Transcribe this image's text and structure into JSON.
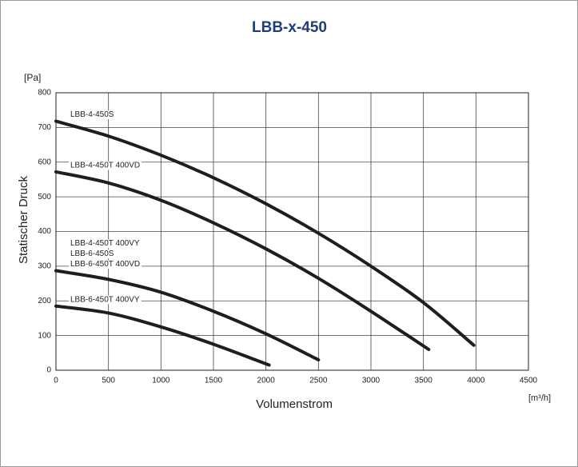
{
  "chart_data": {
    "type": "line",
    "title": "LBB-x-450",
    "y_unit": "[Pa]",
    "x_unit": "[m³/h]",
    "ylabel": "Statischer Druck",
    "xlabel": "Volumenstrom",
    "xlim": [
      0,
      4500
    ],
    "ylim": [
      0,
      800
    ],
    "xticks": [
      0,
      500,
      1000,
      1500,
      2000,
      2500,
      3000,
      3500,
      4000,
      4500
    ],
    "yticks": [
      0,
      100,
      200,
      300,
      400,
      500,
      600,
      700,
      800
    ],
    "grid": true,
    "series": [
      {
        "name": [
          "LBB-4-450S"
        ],
        "color": "#1e1e1e",
        "x": [
          0,
          500,
          1000,
          1500,
          2000,
          2500,
          3000,
          3500,
          3980
        ],
        "values": [
          718,
          675,
          620,
          555,
          480,
          395,
          300,
          195,
          72
        ]
      },
      {
        "name": [
          "LBB-4-450T 400VD"
        ],
        "color": "#1e1e1e",
        "x": [
          0,
          500,
          1000,
          1500,
          2000,
          2500,
          3000,
          3550
        ],
        "values": [
          572,
          540,
          490,
          425,
          350,
          265,
          170,
          60
        ]
      },
      {
        "name": [
          "LBB-4-450T 400VY",
          "LBB-6-450S",
          "LBB-6-450T 400VD"
        ],
        "color": "#1e1e1e",
        "x": [
          0,
          500,
          1000,
          1500,
          2000,
          2500
        ],
        "values": [
          287,
          262,
          225,
          170,
          105,
          30
        ]
      },
      {
        "name": [
          "LBB-6-450T 400VY"
        ],
        "color": "#1e1e1e",
        "x": [
          0,
          500,
          1000,
          1500,
          2030
        ],
        "values": [
          185,
          165,
          125,
          75,
          15
        ]
      }
    ]
  }
}
